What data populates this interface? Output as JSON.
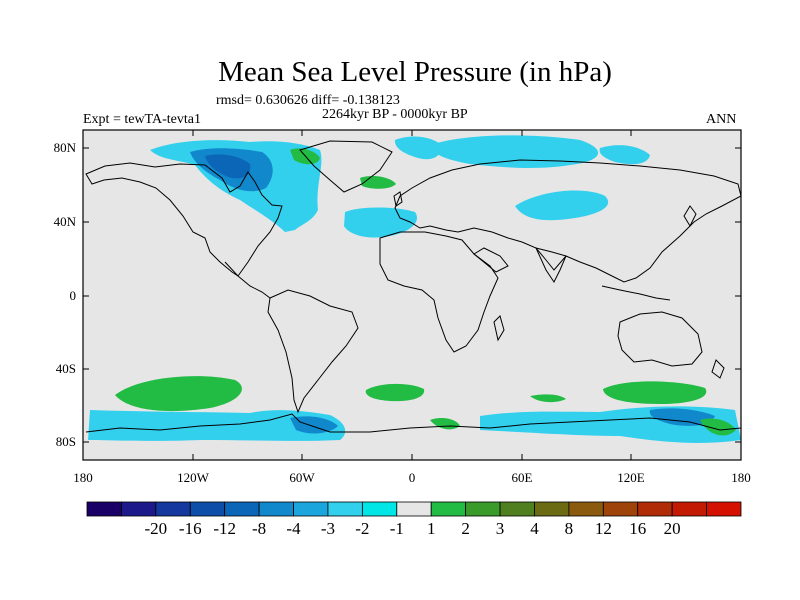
{
  "title": "Mean Sea Level Pressure (in hPa)",
  "stats": "rmsd= 0.630626 diff= -0.138123",
  "period": "2264kyr BP - 0000kyr BP",
  "experiment": "Expt = tewTA-tevta1",
  "season": "ANN",
  "lat_axis": [
    "80N",
    "40N",
    "0",
    "40S",
    "80S"
  ],
  "lon_axis": [
    "180",
    "120W",
    "60W",
    "0",
    "60E",
    "120E",
    "180"
  ],
  "colorbar": {
    "labels": [
      "-20",
      "-16",
      "-12",
      "-8",
      "-4",
      "-3",
      "-2",
      "-1",
      "1",
      "2",
      "3",
      "4",
      "8",
      "12",
      "16",
      "20"
    ],
    "colors": [
      "#1a0066",
      "#1c1a8a",
      "#15389e",
      "#0d4fa8",
      "#0b66b8",
      "#1188cc",
      "#1aa6dd",
      "#33d0ee",
      "#00e6e6",
      "#e6e6e6",
      "#22bb44",
      "#3a9a2a",
      "#4f7f1f",
      "#6b6b14",
      "#8a5a0e",
      "#9e430a",
      "#b02c06",
      "#c21a03",
      "#d41000"
    ]
  }
}
